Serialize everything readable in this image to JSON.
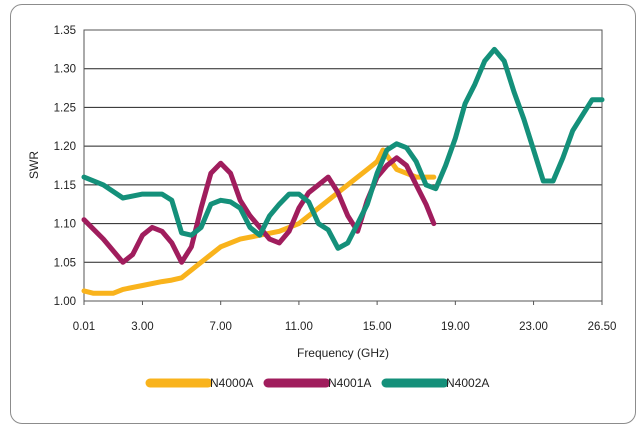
{
  "chart_data": {
    "type": "line",
    "xlabel": "Frequency (GHz)",
    "ylabel": "SWR",
    "xlim": [
      0.01,
      26.5
    ],
    "ylim": [
      1.0,
      1.35
    ],
    "x_ticks": [
      0.01,
      3.0,
      7.0,
      11.0,
      15.0,
      19.0,
      23.0,
      26.5
    ],
    "x_tick_labels": [
      "0.01",
      "3.00",
      "7.00",
      "11.00",
      "15.00",
      "19.00",
      "23.00",
      "26.50"
    ],
    "y_ticks": [
      1.0,
      1.05,
      1.1,
      1.15,
      1.2,
      1.25,
      1.3,
      1.35
    ],
    "y_tick_labels": [
      "1.00",
      "1.05",
      "1.10",
      "1.15",
      "1.20",
      "1.25",
      "1.30",
      "1.35"
    ],
    "grid": "horizontal",
    "legend_position": "bottom",
    "series": [
      {
        "name": "N4000A",
        "color": "#f9b31c",
        "x": [
          0.01,
          0.5,
          1.5,
          2.0,
          3.0,
          4.0,
          4.5,
          5.0,
          6.0,
          7.0,
          8.0,
          9.0,
          10.0,
          11.0,
          12.0,
          13.0,
          14.0,
          14.5,
          15.0,
          15.3,
          16.0,
          17.0,
          17.9
        ],
        "y": [
          1.013,
          1.01,
          1.01,
          1.015,
          1.02,
          1.025,
          1.027,
          1.03,
          1.05,
          1.07,
          1.08,
          1.085,
          1.09,
          1.1,
          1.12,
          1.14,
          1.16,
          1.17,
          1.18,
          1.195,
          1.17,
          1.16,
          1.16
        ]
      },
      {
        "name": "N4001A",
        "color": "#a01d5d",
        "x": [
          0.01,
          1.0,
          2.0,
          2.5,
          3.0,
          3.5,
          4.0,
          4.5,
          5.0,
          5.5,
          6.0,
          6.5,
          7.0,
          7.5,
          8.0,
          8.5,
          9.0,
          9.5,
          10.0,
          10.5,
          11.0,
          11.5,
          12.0,
          12.5,
          13.0,
          13.5,
          14.0,
          14.5,
          15.0,
          15.5,
          16.0,
          16.5,
          17.0,
          17.5,
          17.9
        ],
        "y": [
          1.105,
          1.08,
          1.05,
          1.06,
          1.085,
          1.095,
          1.09,
          1.075,
          1.05,
          1.07,
          1.12,
          1.165,
          1.178,
          1.165,
          1.13,
          1.11,
          1.095,
          1.08,
          1.075,
          1.09,
          1.12,
          1.14,
          1.15,
          1.16,
          1.14,
          1.11,
          1.09,
          1.13,
          1.16,
          1.175,
          1.185,
          1.175,
          1.15,
          1.125,
          1.1
        ]
      },
      {
        "name": "N4002A",
        "color": "#14907a",
        "x": [
          0.01,
          1.0,
          2.0,
          3.0,
          4.0,
          4.5,
          5.0,
          5.5,
          6.0,
          6.5,
          7.0,
          7.5,
          8.0,
          8.5,
          9.0,
          9.5,
          10.0,
          10.5,
          11.0,
          11.5,
          12.0,
          12.5,
          13.0,
          13.5,
          14.0,
          14.5,
          15.0,
          15.5,
          16.0,
          16.5,
          17.0,
          17.5,
          18.0,
          18.5,
          19.0,
          19.5,
          20.0,
          20.5,
          21.0,
          21.5,
          22.0,
          22.5,
          23.0,
          23.5,
          24.0,
          24.5,
          25.0,
          25.5,
          26.0,
          26.5
        ],
        "y": [
          1.16,
          1.15,
          1.133,
          1.138,
          1.138,
          1.13,
          1.088,
          1.085,
          1.095,
          1.125,
          1.13,
          1.128,
          1.12,
          1.095,
          1.085,
          1.11,
          1.125,
          1.138,
          1.138,
          1.128,
          1.1,
          1.092,
          1.068,
          1.075,
          1.1,
          1.125,
          1.165,
          1.195,
          1.203,
          1.198,
          1.18,
          1.15,
          1.145,
          1.175,
          1.21,
          1.255,
          1.28,
          1.31,
          1.325,
          1.31,
          1.27,
          1.235,
          1.195,
          1.155,
          1.155,
          1.185,
          1.22,
          1.24,
          1.26,
          1.26
        ]
      }
    ]
  }
}
